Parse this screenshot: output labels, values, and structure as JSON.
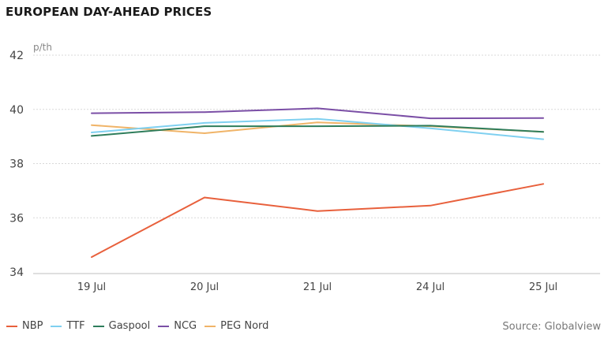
{
  "chart_data": {
    "type": "line",
    "title": "EUROPEAN DAY-AHEAD PRICES",
    "ylabel": "p/th",
    "xlabel": "",
    "categories": [
      "19 Jul",
      "20 Jul",
      "21 Jul",
      "24 Jul",
      "25 Jul"
    ],
    "ylim": [
      34,
      42
    ],
    "yticks": [
      34,
      36,
      38,
      40,
      42
    ],
    "grid": true,
    "legend_position": "bottom-left",
    "series": [
      {
        "name": "NBP",
        "color": "#e8603c",
        "values": [
          34.55,
          36.75,
          36.25,
          36.45,
          37.25
        ]
      },
      {
        "name": "TTF",
        "color": "#7fd0f0",
        "values": [
          39.15,
          39.5,
          39.65,
          39.3,
          38.9
        ]
      },
      {
        "name": "Gaspool",
        "color": "#2e7d5b",
        "values": [
          39.02,
          39.38,
          39.38,
          39.4,
          39.17
        ]
      },
      {
        "name": "NCG",
        "color": "#7b4fa6",
        "values": [
          39.86,
          39.9,
          40.04,
          39.67,
          39.68
        ]
      },
      {
        "name": "PEG Nord",
        "color": "#f0b468",
        "values": [
          39.42,
          39.12,
          39.52,
          39.38,
          39.17
        ]
      }
    ],
    "source": "Source: Globalview"
  }
}
